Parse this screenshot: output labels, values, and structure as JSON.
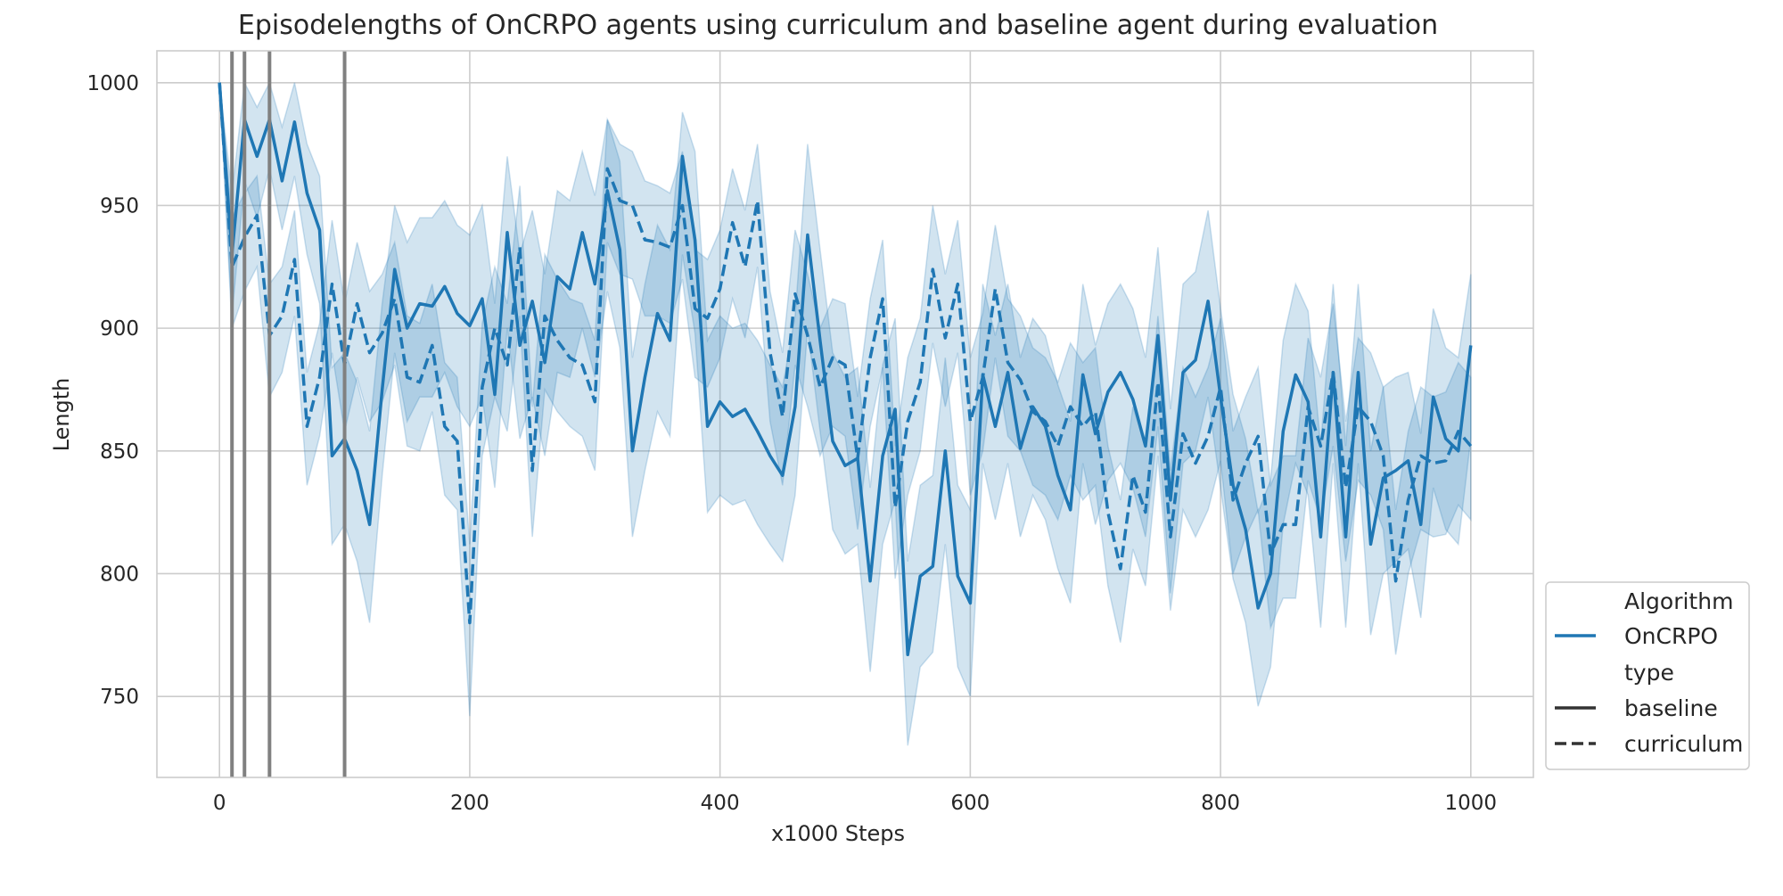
{
  "chart_data": {
    "type": "line",
    "title": "Episodelengths of OnCRPO agents using curriculum and baseline agent during evaluation",
    "xlabel": "x1000 Steps",
    "ylabel": "Length",
    "xlim": [
      -50,
      1050
    ],
    "ylim": [
      717,
      1013
    ],
    "grid": true,
    "x_ticks": [
      0,
      200,
      400,
      600,
      800,
      1000
    ],
    "x_tick_labels": [
      "0",
      "200",
      "400",
      "600",
      "800",
      "1000"
    ],
    "y_ticks": [
      750,
      800,
      850,
      900,
      950,
      1000
    ],
    "y_tick_labels": [
      "750",
      "800",
      "850",
      "900",
      "950",
      "1000"
    ],
    "vertical_markers": [
      10,
      20,
      40,
      100
    ],
    "colors": {
      "series": "#1f77b4",
      "band": "#1f77b4",
      "marker_line": "#808080",
      "grid": "#cccccc"
    },
    "legend": {
      "placement": "lower-right-outside",
      "algorithm_title": "Algorithm",
      "algorithm_entry": "OnCRPO",
      "type_title": "type",
      "type_entries": [
        "baseline",
        "curriculum"
      ]
    },
    "series": [
      {
        "name": "baseline",
        "style": "solid",
        "x": [
          0,
          10,
          20,
          30,
          40,
          50,
          60,
          70,
          80,
          90,
          100,
          110,
          120,
          130,
          140,
          150,
          160,
          170,
          180,
          190,
          200,
          210,
          220,
          230,
          240,
          250,
          260,
          270,
          280,
          290,
          300,
          310,
          320,
          330,
          340,
          350,
          360,
          370,
          380,
          390,
          400,
          410,
          420,
          430,
          440,
          450,
          460,
          470,
          480,
          490,
          500,
          510,
          520,
          530,
          540,
          550,
          560,
          570,
          580,
          590,
          600,
          610,
          620,
          630,
          640,
          650,
          660,
          670,
          680,
          690,
          700,
          710,
          720,
          730,
          740,
          750,
          760,
          770,
          780,
          790,
          800,
          810,
          820,
          830,
          840,
          850,
          860,
          870,
          880,
          890,
          900,
          910,
          920,
          930,
          940,
          950,
          960,
          970,
          980,
          990,
          1000
        ],
        "y": [
          1000,
          930,
          985,
          970,
          985,
          960,
          984,
          955,
          940,
          848,
          855,
          842,
          820,
          875,
          924,
          900,
          910,
          909,
          917,
          906,
          901,
          912,
          873,
          939,
          893,
          911,
          886,
          921,
          916,
          939,
          918,
          956,
          932,
          850,
          880,
          906,
          895,
          970,
          936,
          860,
          870,
          864,
          867,
          858,
          848,
          840,
          868,
          938,
          895,
          854,
          844,
          847,
          797,
          848,
          867,
          767,
          799,
          803,
          850,
          799,
          788,
          881,
          860,
          882,
          851,
          868,
          860,
          840,
          826,
          881,
          857,
          874,
          882,
          871,
          852,
          897,
          830,
          882,
          887,
          911,
          872,
          836,
          818,
          786,
          800,
          858,
          881,
          870,
          815,
          882,
          815,
          882,
          812,
          839,
          842,
          846,
          820,
          872,
          855,
          850,
          893
        ],
        "lower": [
          1000,
          905,
          960,
          945,
          965,
          940,
          962,
          930,
          910,
          812,
          820,
          805,
          780,
          840,
          890,
          862,
          872,
          872,
          882,
          868,
          860,
          872,
          835,
          900,
          855,
          872,
          848,
          882,
          880,
          900,
          880,
          915,
          892,
          815,
          842,
          866,
          856,
          930,
          898,
          825,
          832,
          828,
          830,
          820,
          812,
          805,
          832,
          900,
          858,
          818,
          808,
          812,
          760,
          812,
          830,
          730,
          762,
          768,
          812,
          762,
          750,
          845,
          822,
          845,
          815,
          832,
          822,
          802,
          788,
          845,
          820,
          838,
          845,
          835,
          815,
          860,
          792,
          845,
          850,
          872,
          835,
          798,
          780,
          746,
          762,
          820,
          845,
          832,
          778,
          845,
          778,
          845,
          775,
          800,
          805,
          810,
          782,
          835,
          818,
          812,
          855
        ],
        "upper": [
          1000,
          955,
          1000,
          990,
          1000,
          982,
          1000,
          975,
          962,
          884,
          890,
          878,
          858,
          910,
          950,
          935,
          945,
          945,
          952,
          942,
          938,
          950,
          910,
          970,
          930,
          948,
          922,
          956,
          952,
          972,
          954,
          985,
          968,
          888,
          918,
          942,
          932,
          988,
          972,
          895,
          905,
          900,
          902,
          895,
          885,
          876,
          905,
          975,
          932,
          890,
          880,
          884,
          835,
          885,
          904,
          805,
          836,
          840,
          888,
          836,
          826,
          918,
          897,
          918,
          888,
          904,
          897,
          877,
          862,
          918,
          893,
          910,
          918,
          908,
          888,
          933,
          867,
          918,
          923,
          948,
          908,
          873,
          855,
          825,
          838,
          895,
          918,
          907,
          852,
          918,
          852,
          918,
          850,
          876,
          880,
          882,
          857,
          908,
          892,
          888,
          922
        ]
      },
      {
        "name": "curriculum",
        "style": "dashed",
        "x": [
          0,
          10,
          20,
          30,
          40,
          50,
          60,
          70,
          80,
          90,
          100,
          110,
          120,
          130,
          140,
          150,
          160,
          170,
          180,
          190,
          200,
          210,
          220,
          230,
          240,
          250,
          260,
          270,
          280,
          290,
          300,
          310,
          320,
          330,
          340,
          350,
          360,
          370,
          380,
          390,
          400,
          410,
          420,
          430,
          440,
          450,
          460,
          470,
          480,
          490,
          500,
          510,
          520,
          530,
          540,
          550,
          560,
          570,
          580,
          590,
          600,
          610,
          620,
          630,
          640,
          650,
          660,
          670,
          680,
          690,
          700,
          710,
          720,
          730,
          740,
          750,
          760,
          770,
          780,
          790,
          800,
          810,
          820,
          830,
          840,
          850,
          860,
          870,
          880,
          890,
          900,
          910,
          920,
          930,
          940,
          950,
          960,
          970,
          980,
          990,
          1000
        ],
        "y": [
          1000,
          925,
          937,
          946,
          897,
          905,
          928,
          860,
          880,
          918,
          885,
          910,
          890,
          898,
          912,
          880,
          878,
          893,
          860,
          854,
          780,
          876,
          900,
          885,
          933,
          842,
          905,
          895,
          888,
          885,
          870,
          965,
          952,
          950,
          936,
          935,
          933,
          950,
          908,
          904,
          916,
          943,
          925,
          952,
          890,
          864,
          914,
          897,
          876,
          888,
          885,
          847,
          888,
          912,
          827,
          862,
          878,
          924,
          896,
          918,
          862,
          880,
          916,
          886,
          879,
          866,
          862,
          852,
          868,
          860,
          866,
          825,
          802,
          840,
          825,
          878,
          815,
          857,
          845,
          856,
          876,
          830,
          845,
          856,
          808,
          820,
          820,
          868,
          852,
          882,
          835,
          868,
          862,
          848,
          797,
          830,
          848,
          845,
          846,
          858,
          852
        ],
        "lower": [
          1000,
          900,
          915,
          925,
          872,
          882,
          905,
          836,
          856,
          890,
          858,
          880,
          862,
          870,
          885,
          852,
          850,
          866,
          832,
          826,
          742,
          848,
          872,
          858,
          905,
          815,
          875,
          866,
          860,
          856,
          842,
          935,
          922,
          920,
          905,
          905,
          902,
          920,
          880,
          876,
          888,
          912,
          896,
          925,
          862,
          836,
          885,
          868,
          848,
          860,
          856,
          818,
          860,
          884,
          798,
          832,
          850,
          894,
          868,
          890,
          832,
          850,
          888,
          856,
          850,
          836,
          832,
          822,
          840,
          830,
          836,
          795,
          772,
          810,
          795,
          848,
          785,
          826,
          815,
          826,
          846,
          800,
          815,
          826,
          778,
          790,
          790,
          838,
          822,
          852,
          805,
          838,
          832,
          818,
          767,
          800,
          818,
          815,
          816,
          828,
          822
        ],
        "upper": [
          1000,
          945,
          955,
          962,
          918,
          925,
          948,
          882,
          902,
          944,
          910,
          935,
          915,
          922,
          935,
          905,
          902,
          918,
          886,
          880,
          812,
          902,
          925,
          910,
          958,
          868,
          930,
          920,
          912,
          910,
          895,
          985,
          975,
          972,
          960,
          958,
          955,
          972,
          932,
          928,
          940,
          965,
          948,
          975,
          915,
          890,
          940,
          922,
          900,
          912,
          910,
          872,
          912,
          936,
          852,
          888,
          904,
          950,
          922,
          944,
          888,
          906,
          942,
          912,
          905,
          892,
          888,
          878,
          894,
          886,
          892,
          852,
          830,
          868,
          852,
          905,
          842,
          884,
          872,
          884,
          904,
          858,
          872,
          884,
          836,
          848,
          848,
          896,
          880,
          910,
          862,
          896,
          890,
          876,
          826,
          858,
          876,
          872,
          874,
          886,
          880
        ]
      }
    ]
  }
}
